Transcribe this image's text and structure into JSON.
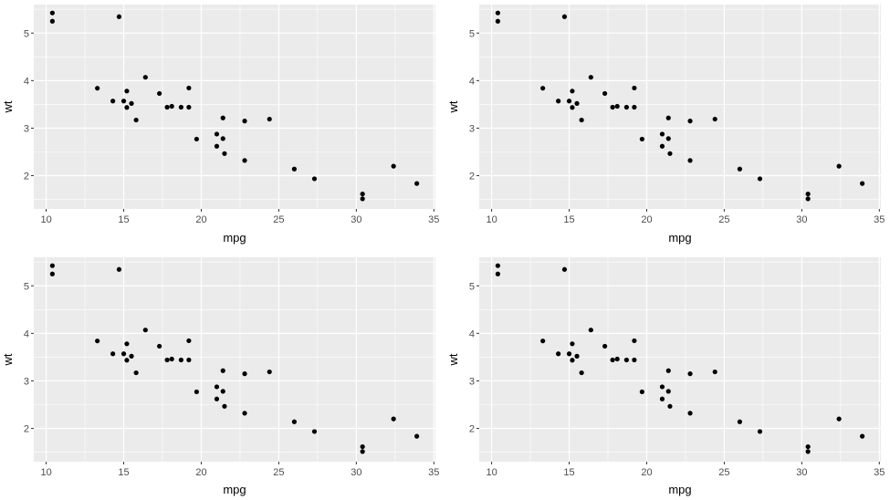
{
  "chart_data": [
    {
      "type": "scatter",
      "title": "",
      "xlabel": "mpg",
      "ylabel": "wt",
      "xlim": [
        9.2,
        35.1
      ],
      "ylim": [
        1.3,
        5.6
      ],
      "xticks": [
        10,
        15,
        20,
        25,
        30,
        35
      ],
      "yticks": [
        2,
        3,
        4,
        5
      ],
      "grid": true,
      "colors": {
        "panel_bg": "#EBEBEB",
        "grid": "#FFFFFF",
        "point": "#000000",
        "tick_label": "#4D4D4D",
        "axis_title": "#000000"
      },
      "series": [
        {
          "x": [
            21.0,
            21.0,
            22.8,
            21.4,
            18.7,
            18.1,
            14.3,
            24.4,
            22.8,
            19.2,
            17.8,
            16.4,
            17.3,
            15.2,
            10.4,
            10.4,
            14.7,
            32.4,
            30.4,
            33.9,
            21.5,
            15.5,
            15.2,
            13.3,
            19.2,
            27.3,
            26.0,
            30.4,
            15.8,
            19.7,
            15.0,
            21.4
          ],
          "y": [
            2.62,
            2.875,
            2.32,
            3.215,
            3.44,
            3.46,
            3.57,
            3.19,
            3.15,
            3.44,
            3.44,
            4.07,
            3.73,
            3.78,
            5.25,
            5.424,
            5.345,
            2.2,
            1.615,
            1.835,
            2.465,
            3.52,
            3.435,
            3.84,
            3.845,
            1.935,
            2.14,
            1.513,
            3.17,
            2.77,
            3.57,
            2.78
          ]
        }
      ]
    },
    {
      "type": "scatter",
      "title": "",
      "xlabel": "mpg",
      "ylabel": "wt",
      "xlim": [
        9.2,
        35.1
      ],
      "ylim": [
        1.3,
        5.6
      ],
      "xticks": [
        10,
        15,
        20,
        25,
        30,
        35
      ],
      "yticks": [
        2,
        3,
        4,
        5
      ],
      "grid": true,
      "colors": {
        "panel_bg": "#EBEBEB",
        "grid": "#FFFFFF",
        "point": "#000000",
        "tick_label": "#4D4D4D",
        "axis_title": "#000000"
      },
      "series": [
        {
          "x": [
            21.0,
            21.0,
            22.8,
            21.4,
            18.7,
            18.1,
            14.3,
            24.4,
            22.8,
            19.2,
            17.8,
            16.4,
            17.3,
            15.2,
            10.4,
            10.4,
            14.7,
            32.4,
            30.4,
            33.9,
            21.5,
            15.5,
            15.2,
            13.3,
            19.2,
            27.3,
            26.0,
            30.4,
            15.8,
            19.7,
            15.0,
            21.4
          ],
          "y": [
            2.62,
            2.875,
            2.32,
            3.215,
            3.44,
            3.46,
            3.57,
            3.19,
            3.15,
            3.44,
            3.44,
            4.07,
            3.73,
            3.78,
            5.25,
            5.424,
            5.345,
            2.2,
            1.615,
            1.835,
            2.465,
            3.52,
            3.435,
            3.84,
            3.845,
            1.935,
            2.14,
            1.513,
            3.17,
            2.77,
            3.57,
            2.78
          ]
        }
      ]
    },
    {
      "type": "scatter",
      "title": "",
      "xlabel": "mpg",
      "ylabel": "wt",
      "xlim": [
        9.2,
        35.1
      ],
      "ylim": [
        1.3,
        5.6
      ],
      "xticks": [
        10,
        15,
        20,
        25,
        30,
        35
      ],
      "yticks": [
        2,
        3,
        4,
        5
      ],
      "grid": true,
      "colors": {
        "panel_bg": "#EBEBEB",
        "grid": "#FFFFFF",
        "point": "#000000",
        "tick_label": "#4D4D4D",
        "axis_title": "#000000"
      },
      "series": [
        {
          "x": [
            21.0,
            21.0,
            22.8,
            21.4,
            18.7,
            18.1,
            14.3,
            24.4,
            22.8,
            19.2,
            17.8,
            16.4,
            17.3,
            15.2,
            10.4,
            10.4,
            14.7,
            32.4,
            30.4,
            33.9,
            21.5,
            15.5,
            15.2,
            13.3,
            19.2,
            27.3,
            26.0,
            30.4,
            15.8,
            19.7,
            15.0,
            21.4
          ],
          "y": [
            2.62,
            2.875,
            2.32,
            3.215,
            3.44,
            3.46,
            3.57,
            3.19,
            3.15,
            3.44,
            3.44,
            4.07,
            3.73,
            3.78,
            5.25,
            5.424,
            5.345,
            2.2,
            1.615,
            1.835,
            2.465,
            3.52,
            3.435,
            3.84,
            3.845,
            1.935,
            2.14,
            1.513,
            3.17,
            2.77,
            3.57,
            2.78
          ]
        }
      ]
    },
    {
      "type": "scatter",
      "title": "",
      "xlabel": "mpg",
      "ylabel": "wt",
      "xlim": [
        9.2,
        35.1
      ],
      "ylim": [
        1.3,
        5.6
      ],
      "xticks": [
        10,
        15,
        20,
        25,
        30,
        35
      ],
      "yticks": [
        2,
        3,
        4,
        5
      ],
      "grid": true,
      "colors": {
        "panel_bg": "#EBEBEB",
        "grid": "#FFFFFF",
        "point": "#000000",
        "tick_label": "#4D4D4D",
        "axis_title": "#000000"
      },
      "series": [
        {
          "x": [
            21.0,
            21.0,
            22.8,
            21.4,
            18.7,
            18.1,
            14.3,
            24.4,
            22.8,
            19.2,
            17.8,
            16.4,
            17.3,
            15.2,
            10.4,
            10.4,
            14.7,
            32.4,
            30.4,
            33.9,
            21.5,
            15.5,
            15.2,
            13.3,
            19.2,
            27.3,
            26.0,
            30.4,
            15.8,
            19.7,
            15.0,
            21.4
          ],
          "y": [
            2.62,
            2.875,
            2.32,
            3.215,
            3.44,
            3.46,
            3.57,
            3.19,
            3.15,
            3.44,
            3.44,
            4.07,
            3.73,
            3.78,
            5.25,
            5.424,
            5.345,
            2.2,
            1.615,
            1.835,
            2.465,
            3.52,
            3.435,
            3.84,
            3.845,
            1.935,
            2.14,
            1.513,
            3.17,
            2.77,
            3.57,
            2.78
          ]
        }
      ]
    }
  ]
}
